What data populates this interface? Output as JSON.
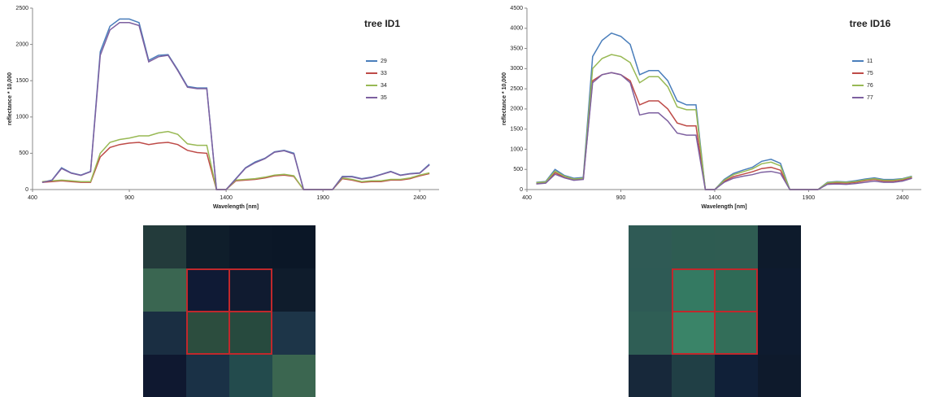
{
  "chart_data": [
    {
      "type": "line",
      "title": "tree ID1",
      "x_label": "Wavelength [nm]",
      "y_label": "reflectance * 10,000",
      "x": [
        450,
        500,
        550,
        600,
        650,
        700,
        750,
        800,
        850,
        900,
        950,
        1000,
        1050,
        1100,
        1150,
        1200,
        1250,
        1300,
        1350,
        1400,
        1450,
        1500,
        1550,
        1600,
        1650,
        1700,
        1750,
        1800,
        1850,
        1900,
        1950,
        2000,
        2050,
        2100,
        2150,
        2200,
        2250,
        2300,
        2350,
        2400,
        2450
      ],
      "xlim": [
        400,
        2500
      ],
      "xticks": [
        400,
        900,
        1400,
        1900,
        2400
      ],
      "ylim": [
        0,
        2500
      ],
      "yticks": [
        0,
        500,
        1000,
        1500,
        2000,
        2500
      ],
      "series": [
        {
          "name": "29",
          "color": "#4a7ebb",
          "values": [
            100,
            130,
            300,
            230,
            200,
            250,
            1900,
            2250,
            2350,
            2350,
            2300,
            1780,
            1850,
            1860,
            1650,
            1420,
            1400,
            1400,
            0,
            0,
            150,
            300,
            380,
            430,
            520,
            540,
            500,
            0,
            0,
            0,
            0,
            180,
            180,
            150,
            170,
            210,
            250,
            200,
            220,
            230,
            350
          ]
        },
        {
          "name": "33",
          "color": "#be4b48",
          "values": [
            100,
            110,
            120,
            110,
            100,
            100,
            450,
            580,
            620,
            640,
            650,
            620,
            640,
            650,
            620,
            540,
            510,
            500,
            0,
            0,
            120,
            130,
            140,
            160,
            190,
            200,
            180,
            0,
            0,
            0,
            0,
            150,
            130,
            100,
            110,
            110,
            130,
            130,
            150,
            190,
            220
          ]
        },
        {
          "name": "34",
          "color": "#98b954",
          "values": [
            110,
            120,
            130,
            120,
            110,
            110,
            500,
            650,
            690,
            710,
            740,
            740,
            780,
            800,
            760,
            630,
            610,
            610,
            0,
            0,
            130,
            140,
            150,
            170,
            200,
            210,
            190,
            0,
            0,
            0,
            0,
            160,
            140,
            110,
            120,
            120,
            140,
            140,
            160,
            200,
            230
          ]
        },
        {
          "name": "35",
          "color": "#7d60a0",
          "values": [
            100,
            125,
            290,
            225,
            195,
            245,
            1850,
            2200,
            2300,
            2300,
            2260,
            1760,
            1830,
            1850,
            1640,
            1410,
            1390,
            1390,
            0,
            0,
            145,
            295,
            370,
            425,
            515,
            535,
            490,
            0,
            0,
            0,
            0,
            175,
            175,
            145,
            165,
            205,
            245,
            195,
            215,
            225,
            340
          ]
        }
      ]
    },
    {
      "type": "line",
      "title": "tree ID16",
      "x_label": "Wavelength [nm]",
      "y_label": "reflectance * 10,000",
      "x": [
        450,
        500,
        550,
        600,
        650,
        700,
        750,
        800,
        850,
        900,
        950,
        1000,
        1050,
        1100,
        1150,
        1200,
        1250,
        1300,
        1350,
        1400,
        1450,
        1500,
        1550,
        1600,
        1650,
        1700,
        1750,
        1800,
        1850,
        1900,
        1950,
        2000,
        2050,
        2100,
        2150,
        2200,
        2250,
        2300,
        2350,
        2400,
        2450
      ],
      "xlim": [
        400,
        2500
      ],
      "xticks": [
        400,
        900,
        1400,
        1900,
        2400
      ],
      "ylim": [
        0,
        4500
      ],
      "yticks": [
        0,
        500,
        1000,
        1500,
        2000,
        2500,
        3000,
        3500,
        4000,
        4500
      ],
      "series": [
        {
          "name": "11",
          "color": "#4a7ebb",
          "values": [
            180,
            200,
            500,
            350,
            280,
            300,
            3300,
            3700,
            3880,
            3800,
            3600,
            2850,
            2950,
            2950,
            2700,
            2200,
            2100,
            2100,
            0,
            0,
            250,
            400,
            480,
            550,
            700,
            750,
            650,
            0,
            0,
            0,
            0,
            180,
            200,
            190,
            220,
            260,
            290,
            250,
            250,
            270,
            330
          ]
        },
        {
          "name": "75",
          "color": "#be4b48",
          "values": [
            150,
            180,
            420,
            300,
            240,
            260,
            2700,
            2850,
            2900,
            2850,
            2700,
            2100,
            2200,
            2200,
            2000,
            1650,
            1580,
            1580,
            0,
            0,
            200,
            320,
            380,
            440,
            520,
            550,
            480,
            0,
            0,
            0,
            0,
            150,
            170,
            160,
            180,
            220,
            250,
            210,
            210,
            240,
            300
          ]
        },
        {
          "name": "76",
          "color": "#98b954",
          "values": [
            170,
            190,
            460,
            330,
            260,
            280,
            3000,
            3250,
            3350,
            3300,
            3150,
            2650,
            2800,
            2800,
            2550,
            2050,
            1980,
            1980,
            0,
            0,
            230,
            370,
            440,
            510,
            640,
            680,
            590,
            0,
            0,
            0,
            0,
            170,
            190,
            180,
            200,
            240,
            270,
            230,
            230,
            260,
            320
          ]
        },
        {
          "name": "77",
          "color": "#7d60a0",
          "values": [
            140,
            160,
            380,
            290,
            230,
            250,
            2650,
            2850,
            2900,
            2850,
            2650,
            1850,
            1900,
            1900,
            1700,
            1400,
            1350,
            1350,
            0,
            0,
            180,
            280,
            330,
            370,
            430,
            450,
            400,
            0,
            0,
            0,
            0,
            130,
            140,
            130,
            150,
            180,
            210,
            180,
            180,
            210,
            280
          ]
        }
      ]
    }
  ]
}
